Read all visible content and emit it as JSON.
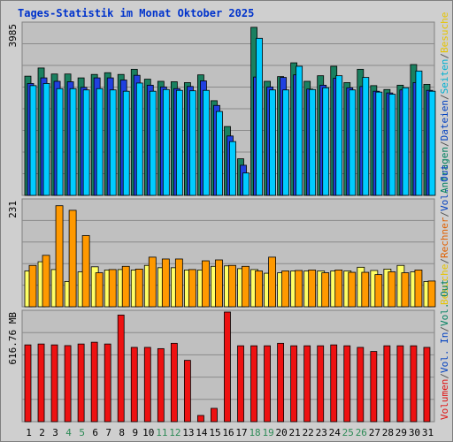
{
  "title": "Tages-Statistik im Monat Oktober 2025",
  "chart_data": [
    {
      "type": "bar",
      "name": "top",
      "ymax_label": "3985",
      "ymax": 3985,
      "side_labels": [
        {
          "text": "Anfragen",
          "color": "#008060"
        },
        {
          "text": "/",
          "color": "#555555"
        },
        {
          "text": "Dateien",
          "color": "#0040c0"
        },
        {
          "text": "/",
          "color": "#555555"
        },
        {
          "text": "Seiten",
          "color": "#00b0d0"
        },
        {
          "text": "/",
          "color": "#555555"
        },
        {
          "text": "Besuche",
          "color": "#e6c400"
        }
      ],
      "series": [
        {
          "name": "Anfragen",
          "color": "#1a8060",
          "values": [
            2770,
            2960,
            2820,
            2820,
            2730,
            2810,
            2850,
            2810,
            2930,
            2700,
            2650,
            2640,
            2620,
            2800,
            2200,
            1600,
            850,
            3905,
            2650,
            2760,
            3080,
            2650,
            2780,
            3000,
            2620,
            2930,
            2550,
            2460,
            2560,
            3040,
            2580
          ]
        },
        {
          "name": "Dateien",
          "color": "#2040e0",
          "values": [
            2600,
            2730,
            2650,
            2640,
            2510,
            2730,
            2730,
            2680,
            2790,
            2560,
            2520,
            2480,
            2530,
            2660,
            2090,
            1380,
            700,
            2750,
            2520,
            2740,
            2800,
            2470,
            2560,
            2720,
            2500,
            2530,
            2420,
            2380,
            2450,
            2620,
            2440
          ]
        },
        {
          "name": "Seiten",
          "color": "#00ccff",
          "values": [
            2550,
            2600,
            2480,
            2480,
            2450,
            2480,
            2450,
            2420,
            2610,
            2420,
            2460,
            2440,
            2430,
            2440,
            1950,
            1250,
            520,
            3650,
            2450,
            2450,
            3000,
            2460,
            2500,
            2780,
            2450,
            2740,
            2400,
            2350,
            2500,
            2890,
            2420
          ]
        }
      ]
    },
    {
      "type": "bar",
      "name": "middle",
      "ymax_label": "231",
      "ymax": 231,
      "side_labels": [
        {
          "text": "Besuche",
          "color": "#e6c400"
        },
        {
          "text": "/",
          "color": "#555555"
        },
        {
          "text": "Rechner",
          "color": "#e06000"
        },
        {
          "text": "/",
          "color": "#555555"
        },
        {
          "text": "Vol. Out",
          "color": "#0040c0"
        }
      ],
      "series": [
        {
          "name": "Besuche",
          "color": "#ffff66",
          "values": [
            78,
            98,
            81,
            55,
            76,
            87,
            80,
            81,
            80,
            90,
            85,
            85,
            80,
            80,
            88,
            89,
            83,
            81,
            73,
            74,
            78,
            78,
            78,
            78,
            78,
            86,
            79,
            82,
            90,
            76,
            55
          ]
        },
        {
          "name": "Rechner",
          "color": "#ff9900",
          "values": [
            90,
            112,
            220,
            210,
            155,
            74,
            81,
            88,
            82,
            108,
            104,
            104,
            81,
            100,
            102,
            90,
            88,
            78,
            108,
            78,
            79,
            80,
            74,
            80,
            75,
            75,
            70,
            76,
            74,
            80,
            56
          ]
        }
      ]
    },
    {
      "type": "bar",
      "name": "bottom",
      "ymax_label": "616.76 MB",
      "ymax": 616.76,
      "side_labels": [
        {
          "text": "Volumen",
          "color": "#e01010"
        },
        {
          "text": "/",
          "color": "#555555"
        },
        {
          "text": "Vol. In",
          "color": "#0040c0"
        },
        {
          "text": "/",
          "color": "#555555"
        },
        {
          "text": "Vol. Out",
          "color": "#008060"
        }
      ],
      "series": [
        {
          "name": "Volumen",
          "color": "#ee1111",
          "values": [
            432,
            437,
            432,
            428,
            437,
            447,
            437,
            600,
            418,
            418,
            411,
            441,
            345,
            35,
            75,
            616.76,
            427,
            427,
            427,
            441,
            427,
            427,
            427,
            432,
            427,
            418,
            395,
            427,
            427,
            427,
            418
          ]
        }
      ]
    }
  ],
  "x_labels": [
    {
      "text": "1",
      "color": "#000000"
    },
    {
      "text": "2",
      "color": "#000000"
    },
    {
      "text": "3",
      "color": "#000000"
    },
    {
      "text": "4",
      "color": "#2e8b57"
    },
    {
      "text": "5",
      "color": "#2e8b57"
    },
    {
      "text": "6",
      "color": "#000000"
    },
    {
      "text": "7",
      "color": "#000000"
    },
    {
      "text": "8",
      "color": "#000000"
    },
    {
      "text": "9",
      "color": "#000000"
    },
    {
      "text": "10",
      "color": "#000000"
    },
    {
      "text": "11",
      "color": "#2e8b57"
    },
    {
      "text": "12",
      "color": "#2e8b57"
    },
    {
      "text": "13",
      "color": "#000000"
    },
    {
      "text": "14",
      "color": "#000000"
    },
    {
      "text": "15",
      "color": "#000000"
    },
    {
      "text": "16",
      "color": "#000000"
    },
    {
      "text": "17",
      "color": "#000000"
    },
    {
      "text": "18",
      "color": "#2e8b57"
    },
    {
      "text": "19",
      "color": "#2e8b57"
    },
    {
      "text": "20",
      "color": "#000000"
    },
    {
      "text": "21",
      "color": "#000000"
    },
    {
      "text": "22",
      "color": "#000000"
    },
    {
      "text": "23",
      "color": "#000000"
    },
    {
      "text": "24",
      "color": "#000000"
    },
    {
      "text": "25",
      "color": "#2e8b57"
    },
    {
      "text": "26",
      "color": "#2e8b57"
    },
    {
      "text": "27",
      "color": "#000000"
    },
    {
      "text": "28",
      "color": "#000000"
    },
    {
      "text": "29",
      "color": "#000000"
    },
    {
      "text": "30",
      "color": "#000000"
    },
    {
      "text": "31",
      "color": "#000000"
    }
  ]
}
